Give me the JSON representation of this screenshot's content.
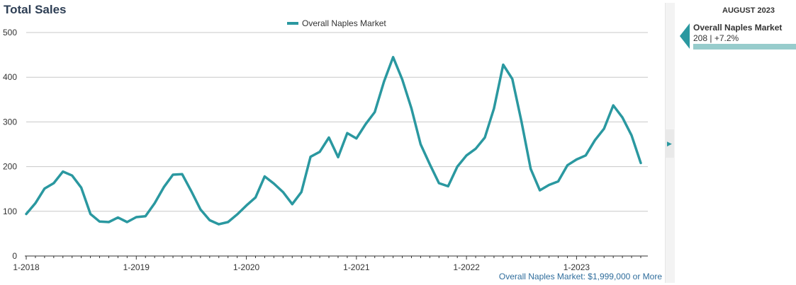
{
  "title": "Total Sales",
  "footnote": "Overall Naples Market: $1,999,000 or More",
  "side_panel": {
    "period": "AUGUST 2023",
    "series_name": "Overall Naples Market",
    "value": "208",
    "change": "+7.2%",
    "separator": "|"
  },
  "colors": {
    "line": "#2a98a0",
    "title": "#2e3f55",
    "footnote": "#2f6d9c",
    "grid": "#c8c8c8",
    "side_bar": "#97cccc"
  },
  "chart_data": {
    "type": "line",
    "title": "Total Sales",
    "xlabel": "",
    "ylabel": "",
    "ylim": [
      0,
      500
    ],
    "yticks": [
      0,
      100,
      200,
      300,
      400,
      500
    ],
    "xtick_labels": [
      "1-2018",
      "1-2019",
      "1-2020",
      "1-2021",
      "1-2022",
      "1-2023"
    ],
    "grid": true,
    "legend_position": "top-center",
    "x": [
      "1-2018",
      "2-2018",
      "3-2018",
      "4-2018",
      "5-2018",
      "6-2018",
      "7-2018",
      "8-2018",
      "9-2018",
      "10-2018",
      "11-2018",
      "12-2018",
      "1-2019",
      "2-2019",
      "3-2019",
      "4-2019",
      "5-2019",
      "6-2019",
      "7-2019",
      "8-2019",
      "9-2019",
      "10-2019",
      "11-2019",
      "12-2019",
      "1-2020",
      "2-2020",
      "3-2020",
      "4-2020",
      "5-2020",
      "6-2020",
      "7-2020",
      "8-2020",
      "9-2020",
      "10-2020",
      "11-2020",
      "12-2020",
      "1-2021",
      "2-2021",
      "3-2021",
      "4-2021",
      "5-2021",
      "6-2021",
      "7-2021",
      "8-2021",
      "9-2021",
      "10-2021",
      "11-2021",
      "12-2021",
      "1-2022",
      "2-2022",
      "3-2022",
      "4-2022",
      "5-2022",
      "6-2022",
      "7-2022",
      "8-2022",
      "9-2022",
      "10-2022",
      "11-2022",
      "12-2022",
      "1-2023",
      "2-2023",
      "3-2023",
      "4-2023",
      "5-2023",
      "6-2023",
      "7-2023",
      "8-2023"
    ],
    "series": [
      {
        "name": "Overall Naples Market",
        "color": "#2a98a0",
        "values": [
          94,
          118,
          151,
          163,
          189,
          180,
          153,
          94,
          77,
          76,
          86,
          76,
          87,
          89,
          118,
          154,
          182,
          183,
          145,
          104,
          80,
          71,
          76,
          93,
          113,
          131,
          178,
          162,
          143,
          116,
          143,
          222,
          233,
          265,
          221,
          275,
          263,
          295,
          322,
          390,
          445,
          395,
          330,
          250,
          205,
          163,
          156,
          200,
          225,
          240,
          265,
          330,
          428,
          396,
          300,
          195,
          147,
          159,
          167,
          203,
          216,
          225,
          259,
          285,
          337,
          310,
          270,
          208
        ]
      }
    ]
  }
}
